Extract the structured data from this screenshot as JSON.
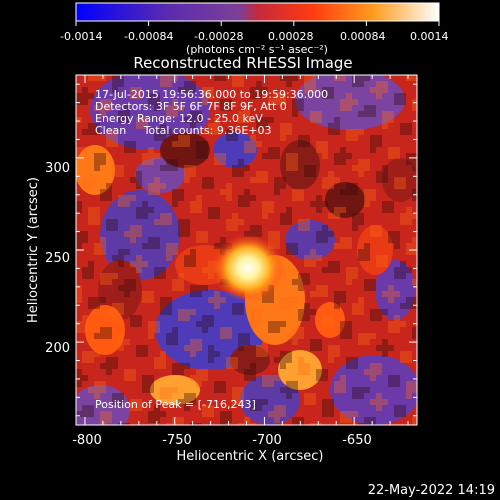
{
  "chart_data": {
    "type": "heatmap",
    "title": "Reconstructed RHESSI Image",
    "xlabel": "Heliocentric X (arcsec)",
    "ylabel": "Heliocentric Y (arcsec)",
    "xlim": [
      -805,
      -615
    ],
    "ylim": [
      155,
      345
    ],
    "x_ticks": [
      -800,
      -750,
      -700,
      -650
    ],
    "y_ticks": [
      200,
      250,
      300
    ],
    "colorbar": {
      "min": -0.0014,
      "max": 0.0014,
      "ticks": [
        "-0.0014",
        "-0.00084",
        "-0.00028",
        "0.00028",
        "0.00084",
        "0.0014"
      ],
      "units": "(photons cm⁻² s⁻¹ asec⁻²)"
    },
    "annotations": [
      "17-Jul-2015 19:56:36.000 to 19:59:36.000",
      "Detectors: 3F 5F 6F 7F 8F 9F, Att 0",
      "Energy Range: 12.0 - 25.0 keV",
      "Clean     Total counts: 9.36E+03"
    ],
    "peak": {
      "label": "Position of Peak = [-716,243]",
      "x": -716,
      "y": 243
    },
    "grid": false
  },
  "footer": {
    "timestamp": "22-May-2022 14:19"
  },
  "colors": {
    "background": "#000000",
    "foreground": "#ffffff",
    "colormap": [
      "#0000ff",
      "#5a2bb0",
      "#7d3f98",
      "#e2311a",
      "#ff8a10",
      "#ffe060",
      "#ffffff"
    ]
  }
}
